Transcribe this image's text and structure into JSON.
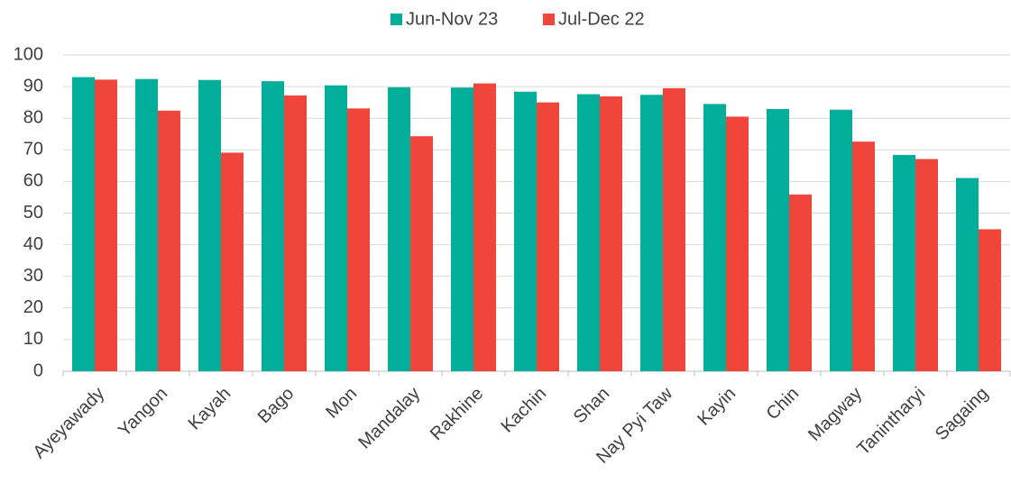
{
  "chart_data": {
    "type": "bar",
    "categories": [
      "Ayeyawady",
      "Yangon",
      "Kayah",
      "Bago",
      "Mon",
      "Mandalay",
      "Rakhine",
      "Kachin",
      "Shan",
      "Nay Pyi Taw",
      "Kayin",
      "Chin",
      "Magway",
      "Tanintharyi",
      "Sagaing"
    ],
    "series": [
      {
        "name": "Jun-Nov 23",
        "color": "#00ae9a",
        "values": [
          93.0,
          92.4,
          92.1,
          91.7,
          90.4,
          89.8,
          89.7,
          88.4,
          87.6,
          87.4,
          84.5,
          82.9,
          82.7,
          68.4,
          61.1
        ]
      },
      {
        "name": "Jul-Dec 22",
        "color": "#f0453a",
        "values": [
          92.2,
          82.4,
          69.1,
          87.2,
          83.1,
          74.3,
          91.0,
          85.0,
          86.9,
          89.5,
          80.5,
          55.9,
          72.6,
          67.1,
          44.9
        ]
      }
    ],
    "ylim": [
      0,
      100
    ],
    "yticks": [
      0,
      10,
      20,
      30,
      40,
      50,
      60,
      70,
      80,
      90,
      100
    ],
    "grid": true,
    "legend": "top"
  }
}
